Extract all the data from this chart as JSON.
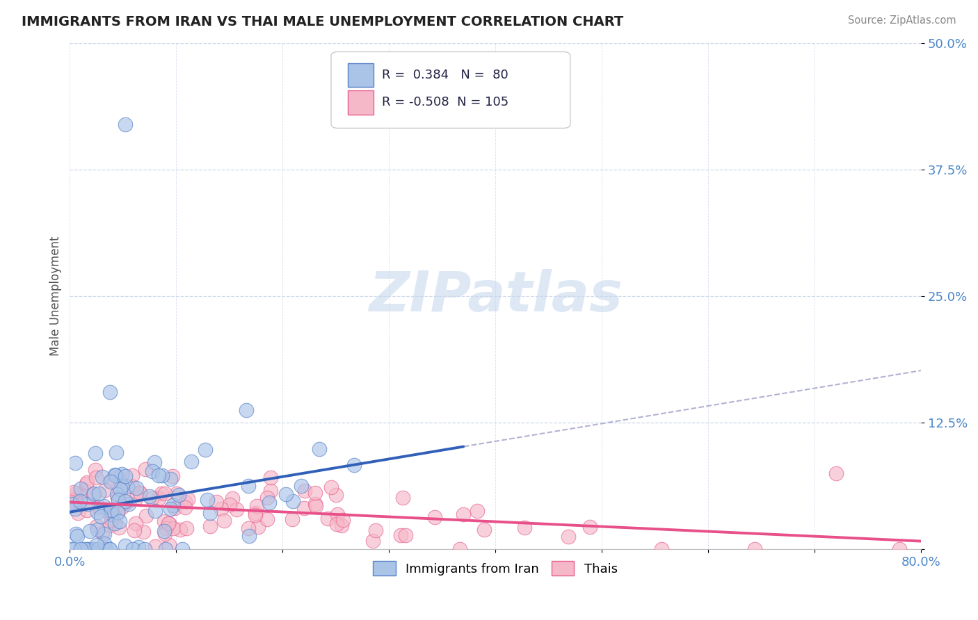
{
  "title": "IMMIGRANTS FROM IRAN VS THAI MALE UNEMPLOYMENT CORRELATION CHART",
  "source": "Source: ZipAtlas.com",
  "ylabel": "Male Unemployment",
  "xlim": [
    0.0,
    0.8
  ],
  "ylim": [
    0.0,
    0.5
  ],
  "yticks": [
    0.0,
    0.125,
    0.25,
    0.375,
    0.5
  ],
  "ytick_labels": [
    "",
    "12.5%",
    "25.0%",
    "37.5%",
    "50.0%"
  ],
  "xticks": [
    0.0,
    0.1,
    0.2,
    0.3,
    0.4,
    0.5,
    0.6,
    0.7,
    0.8
  ],
  "xtick_labels": [
    "0.0%",
    "",
    "",
    "",
    "",
    "",
    "",
    "",
    "80.0%"
  ],
  "blue_fill": "#aac4e8",
  "pink_fill": "#f5b8c8",
  "blue_edge": "#5580c8",
  "pink_edge": "#e86090",
  "blue_line_color": "#3060b8",
  "pink_line_color": "#e8508a",
  "dash_color": "#aaaacc",
  "blue_R": 0.384,
  "blue_N": 80,
  "pink_R": -0.508,
  "pink_N": 105,
  "legend_label_blue": "Immigrants from Iran",
  "legend_label_pink": "Thais",
  "background_color": "#ffffff",
  "grid_color": "#c8d4e8",
  "title_color": "#222222",
  "axis_label_color": "#555555",
  "tick_label_color": "#4a86c8",
  "watermark_color": "#dde8f4",
  "seed": 7
}
